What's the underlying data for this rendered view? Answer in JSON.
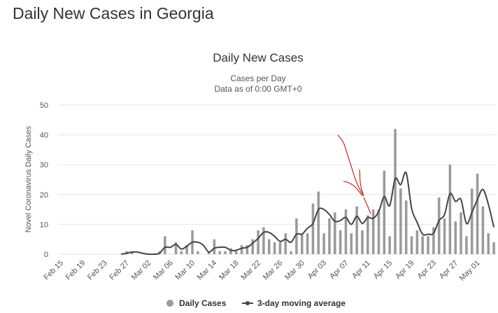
{
  "page": {
    "title": "Daily New Cases in Georgia"
  },
  "chart_data": {
    "type": "bar",
    "title": "Daily New Cases",
    "subtitle": "Cases per Day",
    "subtitle2": "Data as of 0:00 GMT+0",
    "ylabel": "Novel Coronavirus Daily Cases",
    "xlabel": "",
    "ylim": [
      0,
      50
    ],
    "yticks": [
      0,
      10,
      20,
      30,
      40,
      50
    ],
    "grid": true,
    "legend_position": "bottom",
    "x_tick_labels": [
      "Feb 15",
      "Feb 19",
      "Feb 23",
      "Feb 27",
      "Mar 02",
      "Mar 06",
      "Mar 10",
      "Mar 14",
      "Mar 18",
      "Mar 22",
      "Mar 26",
      "Mar 30",
      "Apr 03",
      "Apr 07",
      "Apr 11",
      "Apr 15",
      "Apr 19",
      "Apr 23",
      "Apr 27",
      "May 01"
    ],
    "categories": [
      "Feb 15",
      "Feb 16",
      "Feb 17",
      "Feb 18",
      "Feb 19",
      "Feb 20",
      "Feb 21",
      "Feb 22",
      "Feb 23",
      "Feb 24",
      "Feb 25",
      "Feb 26",
      "Feb 27",
      "Feb 28",
      "Feb 29",
      "Mar 01",
      "Mar 02",
      "Mar 03",
      "Mar 04",
      "Mar 05",
      "Mar 06",
      "Mar 07",
      "Mar 08",
      "Mar 09",
      "Mar 10",
      "Mar 11",
      "Mar 12",
      "Mar 13",
      "Mar 14",
      "Mar 15",
      "Mar 16",
      "Mar 17",
      "Mar 18",
      "Mar 19",
      "Mar 20",
      "Mar 21",
      "Mar 22",
      "Mar 23",
      "Mar 24",
      "Mar 25",
      "Mar 26",
      "Mar 27",
      "Mar 28",
      "Mar 29",
      "Mar 30",
      "Mar 31",
      "Apr 01",
      "Apr 02",
      "Apr 03",
      "Apr 04",
      "Apr 05",
      "Apr 06",
      "Apr 07",
      "Apr 08",
      "Apr 09",
      "Apr 10",
      "Apr 11",
      "Apr 12",
      "Apr 13",
      "Apr 14",
      "Apr 15",
      "Apr 16",
      "Apr 17",
      "Apr 18",
      "Apr 19",
      "Apr 20",
      "Apr 21",
      "Apr 22",
      "Apr 23",
      "Apr 24",
      "Apr 25",
      "Apr 26",
      "Apr 27",
      "Apr 28",
      "Apr 29",
      "Apr 30",
      "May 01",
      "May 02",
      "May 03",
      "May 04"
    ],
    "series": [
      {
        "name": "Daily Cases",
        "values": [
          0,
          0,
          0,
          0,
          0,
          0,
          0,
          0,
          0,
          0,
          0,
          0,
          1,
          1,
          0,
          0,
          0,
          0,
          1,
          6,
          0,
          4,
          1,
          3,
          8,
          1,
          0,
          1,
          5,
          1,
          1,
          2,
          1,
          3,
          3,
          5,
          8,
          9,
          5,
          4,
          4,
          7,
          1,
          12,
          7,
          7,
          17,
          21,
          7,
          12,
          14,
          8,
          15,
          7,
          16,
          8,
          13,
          15,
          15,
          28,
          6,
          42,
          22,
          18,
          6,
          8,
          6,
          6,
          9,
          19,
          12,
          30,
          11,
          14,
          6,
          22,
          27,
          16,
          7,
          4
        ]
      },
      {
        "name": "3-day moving average",
        "values": [
          0,
          0,
          0,
          0,
          0,
          0,
          0,
          0,
          0,
          0,
          0,
          0,
          0.3,
          0.7,
          0.7,
          0.3,
          0,
          0,
          0.3,
          2.3,
          2.3,
          3.3,
          1.7,
          2.7,
          4,
          4,
          3,
          0.7,
          2,
          2.3,
          2.3,
          1.3,
          1.3,
          2,
          2.3,
          3.7,
          5.3,
          7.3,
          7.3,
          6,
          4.3,
          5,
          4,
          6.7,
          6.7,
          8.7,
          10.3,
          15,
          15,
          13.3,
          11,
          11.3,
          12.3,
          10,
          12.7,
          10.3,
          12.3,
          12,
          14.3,
          19.3,
          16.3,
          25.3,
          23.3,
          27.3,
          15.3,
          10.7,
          6.7,
          6.7,
          7,
          11.3,
          13.3,
          20.3,
          17.7,
          18.3,
          10.3,
          14,
          18.3,
          21.7,
          16.7,
          9
        ]
      }
    ]
  }
}
